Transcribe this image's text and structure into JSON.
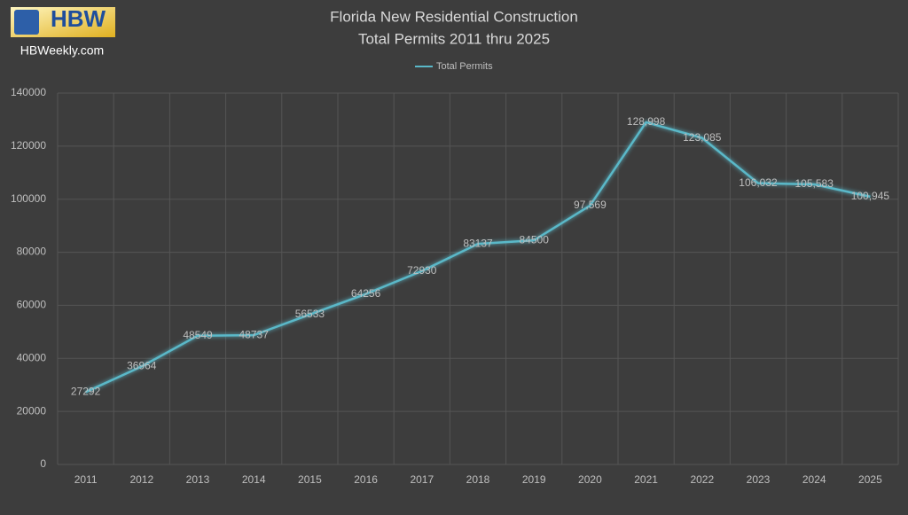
{
  "logo": "HBW",
  "site": "HBWeekly.com",
  "chart_data": {
    "type": "line",
    "title": "Florida New Residential Construction",
    "subtitle": "Total Permits 2011 thru 2025",
    "categories": [
      "2011",
      "2012",
      "2013",
      "2014",
      "2015",
      "2016",
      "2017",
      "2018",
      "2019",
      "2020",
      "2021",
      "2022",
      "2023",
      "2024",
      "2025"
    ],
    "series": [
      {
        "name": "Total Permits",
        "color": "#5ab8c8",
        "values": [
          27292,
          36964,
          48549,
          48737,
          56533,
          64256,
          72930,
          83137,
          84500,
          97569,
          128998,
          123085,
          106032,
          105583,
          100945
        ],
        "value_labels": [
          "27292",
          "36964",
          "48549",
          "48737",
          "56533",
          "64256",
          "72930",
          "83137",
          "84500",
          "97,569",
          "128,998",
          "123,085",
          "106,032",
          "105,583",
          "100,945"
        ]
      }
    ],
    "ylim": [
      0,
      140000
    ],
    "yticks": [
      0,
      20000,
      40000,
      60000,
      80000,
      100000,
      120000,
      140000
    ],
    "grid": true,
    "legend": "top"
  }
}
